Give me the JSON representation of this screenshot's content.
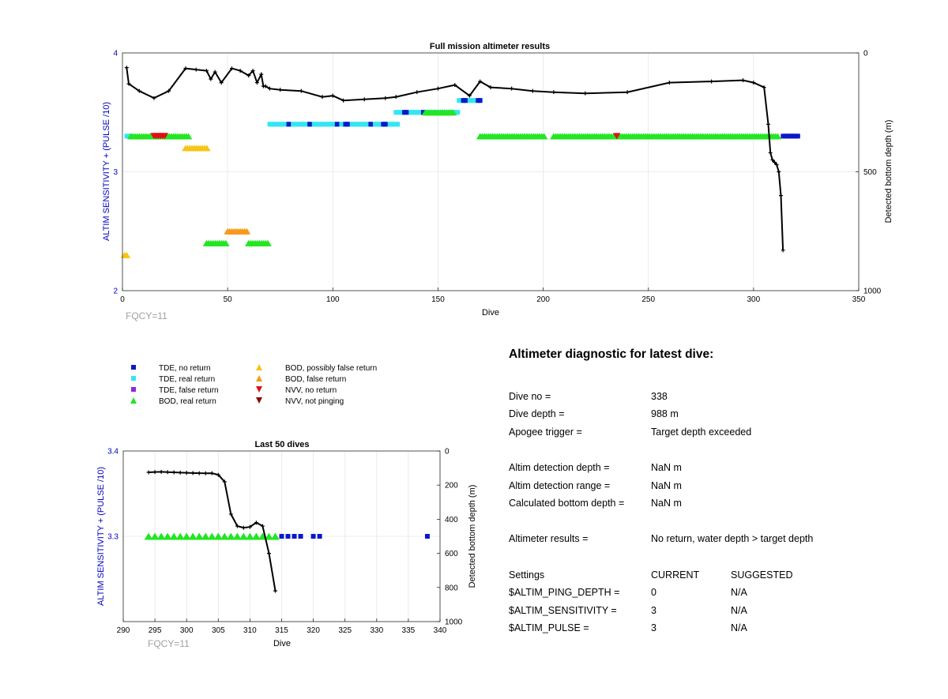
{
  "top_chart": {
    "title": "Full mission altimeter results",
    "xlabel": "Dive",
    "ylabel_left": "ALTIM SENSITIVITY + (PULSE /10)",
    "ylabel_right": "Detected bottom depth (m)",
    "xticks": [
      "0",
      "50",
      "100",
      "150",
      "200",
      "250",
      "300",
      "350"
    ],
    "yticks_left": [
      "2",
      "3",
      "4"
    ],
    "yticks_right": [
      "0",
      "500",
      "1000"
    ],
    "note": "FQCY=11"
  },
  "bottom_chart": {
    "title": "Last 50 dives",
    "xlabel": "Dive",
    "ylabel_left": "ALTIM SENSITIVITY + (PULSE /10)",
    "ylabel_right": "Detected bottom depth (m)",
    "xticks": [
      "290",
      "295",
      "300",
      "305",
      "310",
      "315",
      "320",
      "325",
      "330",
      "335",
      "340"
    ],
    "yticks_left": [
      "3.4",
      "3.3"
    ],
    "yticks_right": [
      "0",
      "200",
      "400",
      "600",
      "800",
      "1000"
    ],
    "note": "FQCY=11"
  },
  "legend": {
    "tde_no_return": "TDE, no return",
    "tde_real_return": "TDE, real return",
    "tde_false_return": "TDE, false return",
    "bod_real_return": "BOD, real return",
    "bod_possibly_false": "BOD, possibly false return",
    "bod_false_return": "BOD, false return",
    "nvv_no_return": "NVV, no return",
    "nvv_not_pinging": "NVV, not pinging"
  },
  "colors": {
    "tde_no_return": "#0a18c8",
    "tde_real_return": "#33e6f2",
    "tde_false_return": "#8a2be2",
    "bod_real_return": "#22e622",
    "bod_possibly_false": "#f5c518",
    "bod_false_return": "#f59a1a",
    "nvv_no_return": "#e01010",
    "nvv_not_pinging": "#8a0a0a",
    "axis_left": "#0000c0",
    "depth_line": "#000000"
  },
  "diagnostic": {
    "title": "Altimeter diagnostic for latest dive:",
    "dive_no_label": "Dive no =",
    "dive_no_value": "338",
    "dive_depth_label": "Dive depth =",
    "dive_depth_value": "988 m",
    "apogee_label": "Apogee trigger =",
    "apogee_value": "Target depth exceeded",
    "det_depth_label": "Altim detection depth =",
    "det_depth_value": "NaN m",
    "det_range_label": "Altim detection range =",
    "det_range_value": "NaN m",
    "calc_depth_label": "Calculated bottom depth =",
    "calc_depth_value": "NaN m",
    "results_label": "Altimeter results =",
    "results_value": "No return, water depth > target depth",
    "settings_label": "Settings",
    "current_header": "CURRENT",
    "suggested_header": "SUGGESTED",
    "ping_depth_label": "$ALTIM_PING_DEPTH =",
    "ping_depth_current": "0",
    "ping_depth_suggested": "N/A",
    "sensitivity_label": "$ALTIM_SENSITIVITY =",
    "sensitivity_current": "3",
    "sensitivity_suggested": "N/A",
    "pulse_label": "$ALTIM_PULSE =",
    "pulse_current": "3",
    "pulse_suggested": "N/A"
  },
  "chart_data": [
    {
      "type": "scatter",
      "title": "Full mission altimeter results",
      "xlabel": "Dive",
      "ylabel": "ALTIM SENSITIVITY + (PULSE /10)",
      "y2label": "Detected bottom depth (m)",
      "xlim": [
        0,
        350
      ],
      "ylim": [
        2,
        4
      ],
      "y2lim": [
        0,
        1000
      ],
      "grid": true,
      "marker_rows": [
        {
          "name": "tde",
          "y": 3.3,
          "segments": [
            {
              "from": 2,
              "to": 5,
              "kind": "tde_real_return"
            },
            {
              "from": 314,
              "to": 322,
              "kind": "tde_no_return"
            }
          ]
        },
        {
          "name": "tde",
          "y": 3.4,
          "segments": [
            {
              "from": 70,
              "to": 131,
              "kind": "tde_real_return"
            },
            {
              "from": 79,
              "to": 80,
              "kind": "tde_no_return"
            },
            {
              "from": 89,
              "to": 90,
              "kind": "tde_no_return"
            },
            {
              "from": 102,
              "to": 103,
              "kind": "tde_no_return"
            },
            {
              "from": 106,
              "to": 108,
              "kind": "tde_no_return"
            },
            {
              "from": 118,
              "to": 119,
              "kind": "tde_no_return"
            },
            {
              "from": 124,
              "to": 126,
              "kind": "tde_no_return"
            }
          ]
        },
        {
          "name": "tde",
          "y": 3.5,
          "segments": [
            {
              "from": 130,
              "to": 160,
              "kind": "tde_real_return"
            },
            {
              "from": 134,
              "to": 136,
              "kind": "tde_no_return"
            },
            {
              "from": 143,
              "to": 144,
              "kind": "tde_no_return"
            }
          ]
        },
        {
          "name": "tde",
          "y": 3.6,
          "segments": [
            {
              "from": 160,
              "to": 171,
              "kind": "tde_real_return"
            },
            {
              "from": 162,
              "to": 164,
              "kind": "tde_no_return"
            },
            {
              "from": 169,
              "to": 171,
              "kind": "tde_no_return"
            }
          ]
        }
      ],
      "triangle_rows": [
        {
          "y": 3.3,
          "kind": "bod_real_return",
          "from": 4,
          "to": 32
        },
        {
          "y": 3.3,
          "kind": "nvv_no_return",
          "from": 15,
          "to": 21
        },
        {
          "y": 3.2,
          "kind": "bod_possibly_false",
          "from": 30,
          "to": 41
        },
        {
          "y": 3.5,
          "kind": "bod_real_return",
          "from": 144,
          "to": 158
        },
        {
          "y": 3.3,
          "kind": "bod_real_return",
          "from": 170,
          "to": 201
        },
        {
          "y": 3.3,
          "kind": "bod_real_return",
          "from": 205,
          "to": 312
        },
        {
          "y": 3.3,
          "kind": "nvv_no_return",
          "from": 235,
          "to": 235
        },
        {
          "y": 2.5,
          "kind": "bod_false_return",
          "from": 50,
          "to": 60
        },
        {
          "y": 2.4,
          "kind": "bod_real_return",
          "from": 40,
          "to": 50
        },
        {
          "y": 2.4,
          "kind": "bod_real_return",
          "from": 60,
          "to": 70
        },
        {
          "y": 2.3,
          "kind": "bod_possibly_false",
          "from": 1,
          "to": 3
        }
      ],
      "depth_series": {
        "name": "bottom depth",
        "x": [
          2,
          3,
          8,
          15,
          22,
          30,
          35,
          40,
          42,
          44,
          47,
          52,
          56,
          60,
          62,
          64,
          66,
          67,
          68,
          70,
          75,
          85,
          95,
          100,
          105,
          115,
          125,
          130,
          140,
          150,
          158,
          165,
          170,
          175,
          185,
          195,
          205,
          220,
          240,
          260,
          280,
          295,
          300,
          305,
          307,
          308,
          309,
          310,
          311,
          312,
          313,
          314
        ],
        "y": [
          62,
          130,
          160,
          190,
          160,
          65,
          70,
          75,
          110,
          80,
          125,
          65,
          75,
          95,
          75,
          125,
          90,
          140,
          140,
          150,
          155,
          160,
          185,
          180,
          200,
          195,
          190,
          185,
          165,
          150,
          135,
          180,
          120,
          145,
          150,
          160,
          165,
          170,
          165,
          125,
          120,
          115,
          125,
          145,
          300,
          420,
          450,
          460,
          470,
          500,
          600,
          830
        ]
      }
    },
    {
      "type": "scatter",
      "title": "Last 50 dives",
      "xlabel": "Dive",
      "ylabel": "ALTIM SENSITIVITY + (PULSE /10)",
      "y2label": "Detected bottom depth (m)",
      "xlim": [
        290,
        340
      ],
      "ylim": [
        3.2,
        3.4
      ],
      "y2lim": [
        0,
        1000
      ],
      "grid": true,
      "bod_real_return_x": [
        294,
        295,
        296,
        297,
        298,
        299,
        300,
        301,
        302,
        303,
        304,
        305,
        306,
        307,
        308,
        309,
        310,
        311,
        312,
        313,
        314
      ],
      "tde_no_return_x": [
        315,
        316,
        317,
        318,
        320,
        321,
        338
      ],
      "marker_y": 3.3,
      "depth_series": {
        "name": "bottom depth",
        "x": [
          294,
          295,
          296,
          297,
          298,
          299,
          300,
          301,
          302,
          303,
          304,
          305,
          306,
          307,
          308,
          309,
          310,
          311,
          312,
          313,
          314
        ],
        "y": [
          125,
          123,
          122,
          124,
          125,
          127,
          128,
          129,
          130,
          131,
          130,
          140,
          180,
          370,
          440,
          450,
          445,
          420,
          440,
          600,
          820
        ]
      }
    }
  ]
}
